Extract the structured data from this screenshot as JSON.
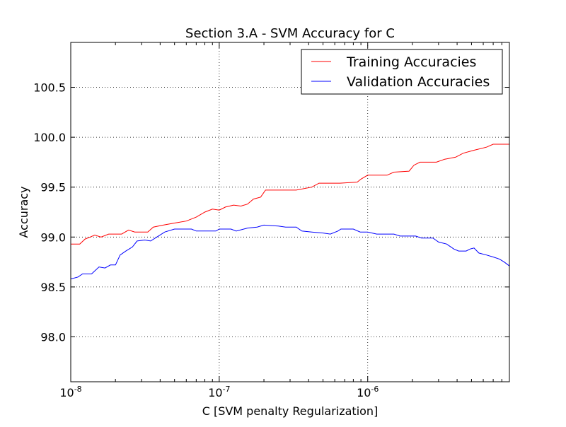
{
  "chart_data": {
    "type": "line",
    "title": "Section 3.A - SVM Accuracy for C",
    "xlabel": "C [SVM penalty Regularization]",
    "ylabel": "Accuracy",
    "xscale": "log",
    "xlim": [
      1e-08,
      9e-06
    ],
    "ylim": [
      97.55,
      100.95
    ],
    "grid": true,
    "legend_position": "top-right",
    "x_ticks": [
      {
        "value": 1e-08,
        "base": "10",
        "exp": "-8"
      },
      {
        "value": 1e-07,
        "base": "10",
        "exp": "-7"
      },
      {
        "value": 1e-06,
        "base": "10",
        "exp": "-6"
      }
    ],
    "y_ticks": [
      {
        "value": 98.0,
        "label": "98.0"
      },
      {
        "value": 98.5,
        "label": "98.5"
      },
      {
        "value": 99.0,
        "label": "99.0"
      },
      {
        "value": 99.5,
        "label": "99.5"
      },
      {
        "value": 100.0,
        "label": "100.0"
      },
      {
        "value": 100.5,
        "label": "100.5"
      }
    ],
    "series": [
      {
        "name": "Training Accuracies",
        "color": "#ff0000",
        "points": [
          [
            1e-08,
            98.93
          ],
          [
            1.15e-08,
            98.93
          ],
          [
            1.25e-08,
            98.98
          ],
          [
            1.35e-08,
            99.0
          ],
          [
            1.45e-08,
            99.02
          ],
          [
            1.6e-08,
            99.0
          ],
          [
            1.8e-08,
            99.03
          ],
          [
            2.2e-08,
            99.03
          ],
          [
            2.45e-08,
            99.07
          ],
          [
            2.7e-08,
            99.05
          ],
          [
            3.3e-08,
            99.05
          ],
          [
            3.6e-08,
            99.1
          ],
          [
            4.2e-08,
            99.12
          ],
          [
            5e-08,
            99.14
          ],
          [
            6e-08,
            99.16
          ],
          [
            7e-08,
            99.2
          ],
          [
            8e-08,
            99.25
          ],
          [
            9e-08,
            99.28
          ],
          [
            1e-07,
            99.27
          ],
          [
            1.1e-07,
            99.3
          ],
          [
            1.25e-07,
            99.32
          ],
          [
            1.4e-07,
            99.31
          ],
          [
            1.55e-07,
            99.33
          ],
          [
            1.7e-07,
            99.38
          ],
          [
            1.9e-07,
            99.4
          ],
          [
            2.05e-07,
            99.47
          ],
          [
            2.5e-07,
            99.47
          ],
          [
            3.3e-07,
            99.47
          ],
          [
            4.2e-07,
            99.5
          ],
          [
            4.7e-07,
            99.54
          ],
          [
            6.5e-07,
            99.54
          ],
          [
            8.5e-07,
            99.55
          ],
          [
            9e-07,
            99.58
          ],
          [
            1e-06,
            99.62
          ],
          [
            1.35e-06,
            99.62
          ],
          [
            1.5e-06,
            99.65
          ],
          [
            1.9e-06,
            99.66
          ],
          [
            2.05e-06,
            99.72
          ],
          [
            2.25e-06,
            99.75
          ],
          [
            2.9e-06,
            99.75
          ],
          [
            3.3e-06,
            99.78
          ],
          [
            3.9e-06,
            99.8
          ],
          [
            4.4e-06,
            99.84
          ],
          [
            5.2e-06,
            99.87
          ],
          [
            6.3e-06,
            99.9
          ],
          [
            7e-06,
            99.93
          ],
          [
            9e-06,
            99.93
          ]
        ]
      },
      {
        "name": "Validation Accuracies",
        "color": "#0000ff",
        "points": [
          [
            1e-08,
            98.58
          ],
          [
            1.12e-08,
            98.6
          ],
          [
            1.2e-08,
            98.63
          ],
          [
            1.38e-08,
            98.63
          ],
          [
            1.45e-08,
            98.66
          ],
          [
            1.55e-08,
            98.7
          ],
          [
            1.7e-08,
            98.69
          ],
          [
            1.85e-08,
            98.72
          ],
          [
            2e-08,
            98.72
          ],
          [
            2.15e-08,
            98.82
          ],
          [
            2.35e-08,
            98.86
          ],
          [
            2.6e-08,
            98.9
          ],
          [
            2.8e-08,
            98.96
          ],
          [
            3.15e-08,
            98.97
          ],
          [
            3.45e-08,
            98.96
          ],
          [
            3.8e-08,
            99.0
          ],
          [
            4.3e-08,
            99.05
          ],
          [
            5e-08,
            99.08
          ],
          [
            6.5e-08,
            99.08
          ],
          [
            7e-08,
            99.06
          ],
          [
            9.5e-08,
            99.06
          ],
          [
            1e-07,
            99.08
          ],
          [
            1.2e-07,
            99.08
          ],
          [
            1.3e-07,
            99.06
          ],
          [
            1.55e-07,
            99.09
          ],
          [
            1.8e-07,
            99.1
          ],
          [
            2e-07,
            99.12
          ],
          [
            2.5e-07,
            99.11
          ],
          [
            2.8e-07,
            99.1
          ],
          [
            3.3e-07,
            99.1
          ],
          [
            3.6e-07,
            99.06
          ],
          [
            4.2e-07,
            99.05
          ],
          [
            5e-07,
            99.04
          ],
          [
            5.6e-07,
            99.03
          ],
          [
            6.3e-07,
            99.06
          ],
          [
            6.6e-07,
            99.08
          ],
          [
            8e-07,
            99.08
          ],
          [
            8.9e-07,
            99.05
          ],
          [
            1e-06,
            99.05
          ],
          [
            1.15e-06,
            99.03
          ],
          [
            1.5e-06,
            99.03
          ],
          [
            1.65e-06,
            99.01
          ],
          [
            2.1e-06,
            99.01
          ],
          [
            2.3e-06,
            98.99
          ],
          [
            2.75e-06,
            98.99
          ],
          [
            3e-06,
            98.95
          ],
          [
            3.4e-06,
            98.93
          ],
          [
            3.8e-06,
            98.88
          ],
          [
            4.1e-06,
            98.86
          ],
          [
            4.6e-06,
            98.86
          ],
          [
            4.9e-06,
            98.88
          ],
          [
            5.2e-06,
            98.89
          ],
          [
            5.6e-06,
            98.84
          ],
          [
            6.3e-06,
            98.82
          ],
          [
            7e-06,
            98.8
          ],
          [
            7.7e-06,
            98.78
          ],
          [
            8.3e-06,
            98.75
          ],
          [
            9e-06,
            98.71
          ]
        ]
      }
    ]
  }
}
